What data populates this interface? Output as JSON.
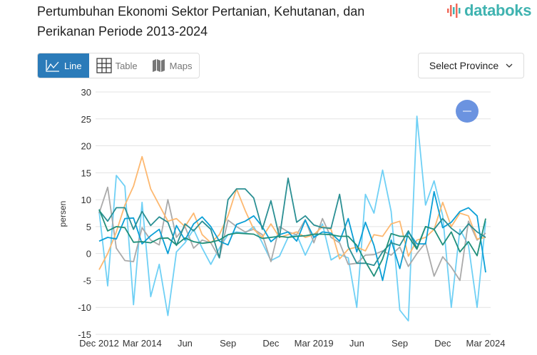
{
  "header": {
    "title": "Pertumbuhan Ekonomi Sektor Pertanian, Kehutanan, dan Perikanan Periode 2013-2024",
    "logo": "databoks"
  },
  "view_buttons": [
    {
      "label": "Line",
      "icon": "line-chart-icon",
      "active": true
    },
    {
      "label": "Table",
      "icon": "table-grid-icon",
      "active": false
    },
    {
      "label": "Maps",
      "icon": "map-icon",
      "active": false
    }
  ],
  "province_select": {
    "label": "Select Province"
  },
  "zoom_button": {
    "icon": "minus-icon",
    "color": "#6b93e0"
  },
  "chart_data": {
    "type": "line",
    "title": "",
    "xlabel": "",
    "ylabel": "persen",
    "ylim": [
      -15,
      30
    ],
    "yticks": [
      30,
      25,
      20,
      15,
      10,
      5,
      0,
      -5,
      -10,
      -15
    ],
    "xtick_labels": [
      "Dec 2012",
      "Mar 2014",
      "Jun",
      "Sep",
      "Dec",
      "Mar 2019",
      "Jun",
      "Sep",
      "Dec",
      "Mar 2024"
    ],
    "x_range": [
      "Dec 2012",
      "Mar 2024"
    ],
    "grid": true,
    "series": [
      {
        "color": "#6fd0f5",
        "values": [
          7.8,
          -6,
          14.5,
          12.5,
          -9.5,
          9.5,
          -8,
          -2,
          -11.5,
          0.3,
          2,
          4.5,
          1,
          -2,
          1,
          3.5,
          4,
          3.8,
          5,
          2,
          -1.3,
          -0.5,
          3,
          3.5,
          -0.3,
          3,
          5.5,
          -1.2,
          -0.2,
          -0.8,
          -10,
          11,
          7.5,
          15.5,
          7.8,
          -10.5,
          -12.5,
          25.5,
          9,
          13.5,
          7,
          -10,
          4.5,
          1.5,
          -10,
          6
        ]
      },
      {
        "color": "#aaaaaa",
        "values": [
          7.5,
          12.3,
          1,
          -1.3,
          -1.5,
          4.8,
          2.5,
          1.6,
          10,
          3,
          5,
          1,
          2.5,
          2,
          -0.8,
          6.2,
          5,
          4,
          4.5,
          3.5,
          -1.5,
          5,
          4,
          3.5,
          6.3,
          2,
          6.5,
          3,
          2,
          -2,
          -1.8,
          -0.3,
          -0.2,
          0.5,
          -0.3,
          1.2,
          -2.4,
          0,
          2,
          -4.2,
          -0.6,
          -2.5,
          -5,
          6,
          2.5,
          3.8
        ]
      },
      {
        "color": "#fdb870",
        "values": [
          -3,
          0,
          4,
          9,
          12.5,
          18,
          12,
          9,
          6,
          6.5,
          5,
          7.5,
          3.5,
          2,
          3.5,
          7,
          12,
          8,
          4.5,
          3,
          5.5,
          3,
          3.5,
          4,
          3,
          3.5,
          5,
          4.5,
          -1,
          0.8,
          1.2,
          0.5,
          3.5,
          3.2,
          5.5,
          6,
          -0.5,
          2.5,
          3,
          4.5,
          9.5,
          5,
          7.5,
          7,
          2.7,
          3
        ]
      },
      {
        "color": "#0a9fd6",
        "values": [
          2.3,
          3,
          2.7,
          6.5,
          6.6,
          1.8,
          3.3,
          4.5,
          0,
          5.2,
          2.5,
          5.5,
          6.8,
          5,
          2.3,
          1.6,
          5.4,
          6,
          7,
          5,
          2.2,
          3.5,
          4,
          2.3,
          6.2,
          3,
          4,
          3.8,
          2.3,
          6.5,
          0.3,
          5.8,
          1.5,
          -5,
          2.5,
          -2.8,
          4,
          1.8,
          1.8,
          11.5,
          4.8,
          5.8,
          7.8,
          8.5,
          7,
          -3.5
        ]
      },
      {
        "color": "#2a8f93",
        "values": [
          8,
          6,
          8.5,
          8.5,
          4.5,
          7.8,
          5.2,
          6.8,
          5.8,
          1.5,
          5.5,
          4.2,
          6,
          4.5,
          -0.8,
          10,
          12,
          12,
          10.3,
          4.5,
          9.8,
          3,
          14,
          5.8,
          7,
          5.3,
          4.8,
          4.7,
          11,
          1.3,
          -1.8,
          -1.8,
          -2.2,
          0.3,
          2,
          1.5,
          4.2,
          1,
          5,
          4.5,
          6.5,
          4.7,
          3.5,
          5.5,
          4,
          3
        ]
      },
      {
        "color": "#1f8f7a",
        "values": [
          8.2,
          4.2,
          5,
          4.8,
          2.1,
          2.2,
          2,
          2.8,
          2.9,
          1.6,
          2.9,
          2.2,
          1.9,
          2.1,
          2.5,
          3.5,
          3.8,
          3.7,
          3.6,
          2.8,
          3,
          3.2,
          3,
          3.2,
          3.3,
          3.6,
          3.6,
          3.5,
          3.2,
          3.2,
          1.5,
          -1.5,
          -4.2,
          -1,
          3.7,
          3.2,
          3.2,
          0.8,
          5,
          4.5,
          1.6,
          4,
          0.3,
          2.2,
          -0.4,
          6.5
        ]
      }
    ]
  }
}
